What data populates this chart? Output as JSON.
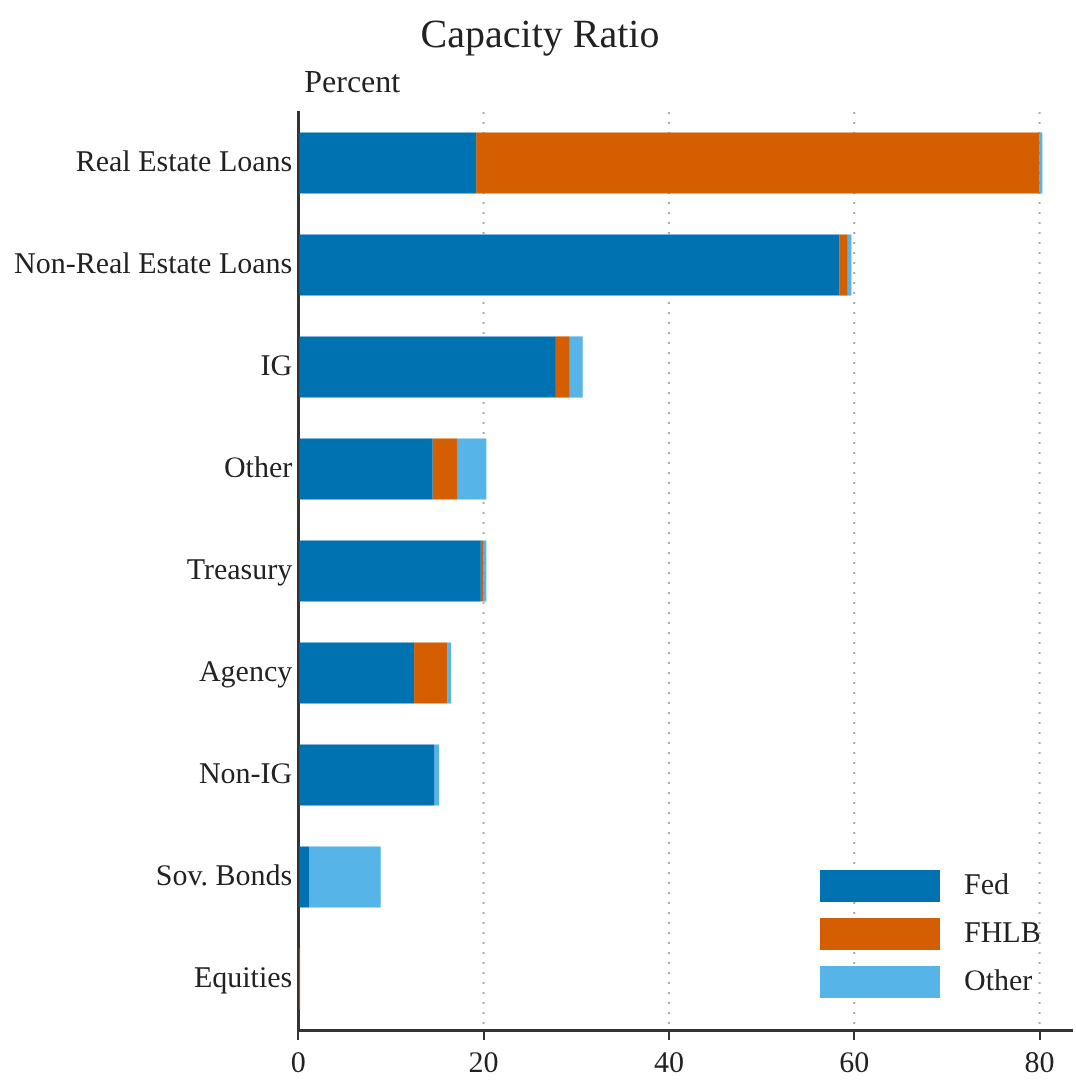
{
  "chart_data": {
    "type": "bar",
    "orientation": "horizontal",
    "stacked": true,
    "title": "Capacity Ratio",
    "xlabel": "Percent",
    "categories": [
      "Real Estate Loans",
      "Non-Real Estate Loans",
      "IG",
      "Other",
      "Treasury",
      "Agency",
      "Non-IG",
      "Sov. Bonds",
      "Equities"
    ],
    "series": [
      {
        "name": "Fed",
        "color": "#0072b2",
        "values": [
          19.2,
          58.4,
          27.8,
          14.5,
          19.7,
          12.5,
          14.7,
          1.2,
          0
        ]
      },
      {
        "name": "FHLB",
        "color": "#d55e00",
        "values": [
          60.8,
          0.9,
          1.5,
          2.7,
          0.3,
          3.6,
          0,
          0,
          0.2
        ]
      },
      {
        "name": "Other",
        "color": "#56b4e9",
        "values": [
          0.3,
          0.4,
          1.4,
          3.1,
          0.3,
          0.4,
          0.5,
          7.7,
          0
        ]
      }
    ],
    "xlim": [
      0,
      83.5
    ],
    "xticks": [
      0,
      20,
      40,
      60,
      80
    ],
    "grid": "x",
    "legend": "bottom right"
  }
}
